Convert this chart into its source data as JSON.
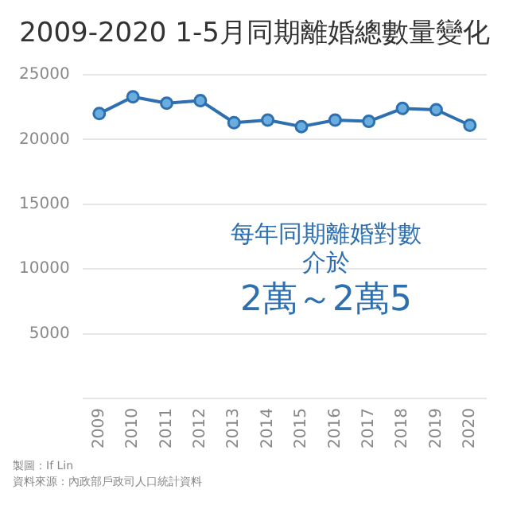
{
  "chart_data": {
    "type": "line",
    "title": "2009-2020 1-5月同期離婚總數量變化",
    "categories": [
      "2009",
      "2010",
      "2011",
      "2012",
      "2013",
      "2014",
      "2015",
      "2016",
      "2017",
      "2018",
      "2019",
      "2020"
    ],
    "series": [
      {
        "color": "#2e6fb0",
        "values": [
          22000,
          23300,
          22800,
          23000,
          21300,
          21500,
          21000,
          21500,
          21400,
          22400,
          22300,
          21100
        ]
      }
    ],
    "ylim": [
      0,
      25000
    ],
    "yticks": [
      {
        "value": 0,
        "label": null
      },
      5000,
      10000,
      15000,
      20000,
      25000
    ],
    "grid": "y",
    "legend": false,
    "marker": "circle",
    "line_style": "solid",
    "annotations": [
      "每年同期離婚對數",
      "介於",
      "2萬～2萬5",
      "製圖：If Lin",
      "資料來源：內政部戶政司人口統計資料"
    ]
  }
}
